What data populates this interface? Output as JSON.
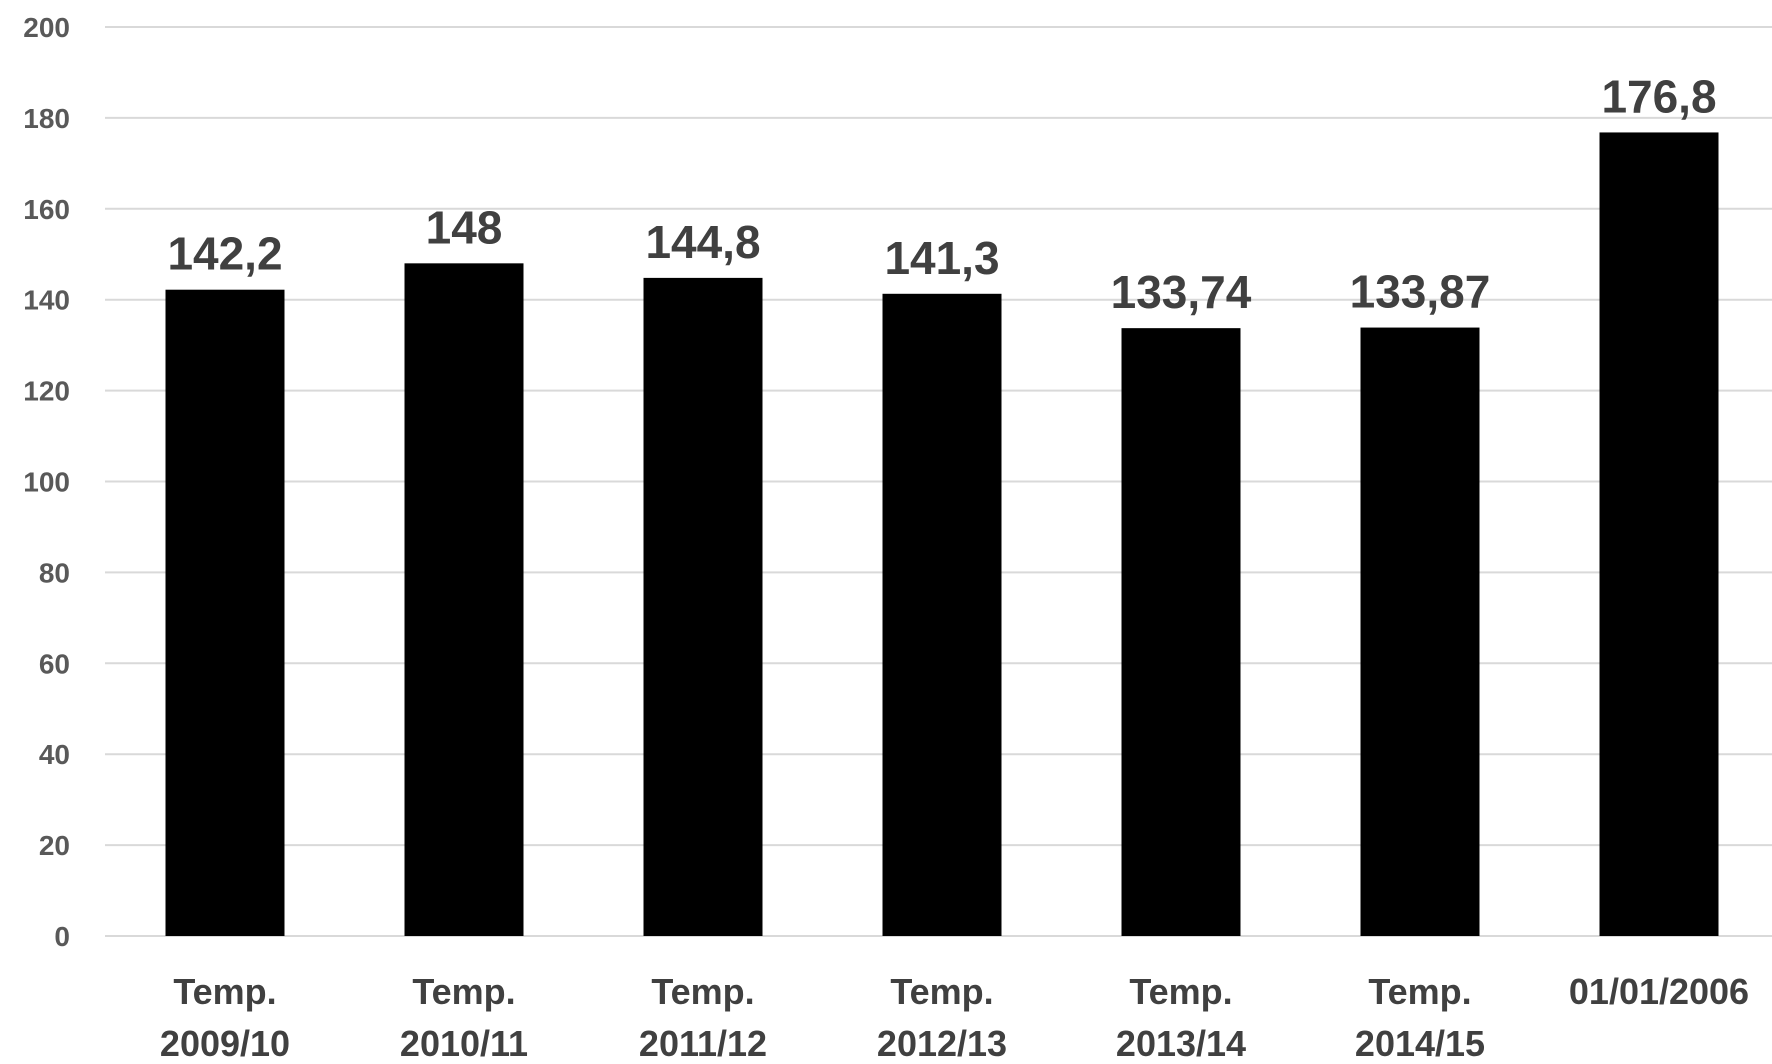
{
  "chart_data": {
    "type": "bar",
    "categories": [
      [
        "Temp.",
        "2009/10"
      ],
      [
        "Temp.",
        "2010/11"
      ],
      [
        "Temp.",
        "2011/12"
      ],
      [
        "Temp.",
        "2012/13"
      ],
      [
        "Temp.",
        "2013/14"
      ],
      [
        "Temp.",
        "2014/15"
      ],
      [
        "01/01/2006"
      ]
    ],
    "values": [
      142.2,
      148,
      144.8,
      141.3,
      133.74,
      133.87,
      176.8
    ],
    "data_labels": [
      "142,2",
      "148",
      "144,8",
      "141,3",
      "133,74",
      "133,87",
      "176,8"
    ],
    "y_ticks": [
      "0",
      "20",
      "40",
      "60",
      "80",
      "100",
      "120",
      "140",
      "160",
      "180",
      "200"
    ],
    "ylim": [
      0,
      200
    ],
    "title": "",
    "xlabel": "",
    "ylabel": "",
    "grid": true,
    "legend": "none",
    "bar_color": "#000000",
    "label_color": "#404040",
    "tick_color": "#595959",
    "grid_color": "#d9d9d9"
  }
}
